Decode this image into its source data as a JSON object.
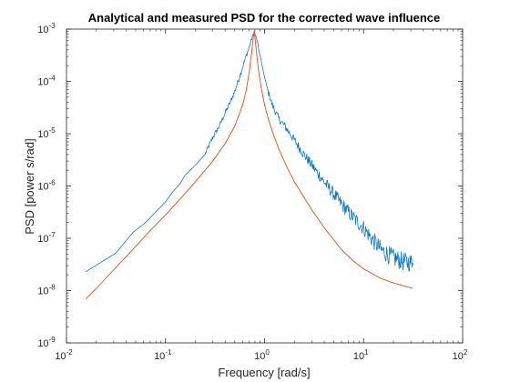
{
  "chart_data": {
    "type": "line",
    "title": "Analytical and measured PSD for the corrected wave influence",
    "xlabel": "Frequency [rad/s]",
    "ylabel": "PSD [power s/rad]",
    "xscale": "log",
    "yscale": "log",
    "xlim": [
      0.01,
      100
    ],
    "ylim": [
      1e-09,
      0.001
    ],
    "x_ticks": [
      {
        "value": 0.01,
        "base": "10",
        "exp": "-2"
      },
      {
        "value": 0.1,
        "base": "10",
        "exp": "-1"
      },
      {
        "value": 1,
        "base": "10",
        "exp": "0"
      },
      {
        "value": 10,
        "base": "10",
        "exp": "1"
      },
      {
        "value": 100,
        "base": "10",
        "exp": "2"
      }
    ],
    "y_ticks": [
      {
        "value": 1e-09,
        "base": "10",
        "exp": "-9"
      },
      {
        "value": 1e-08,
        "base": "10",
        "exp": "-8"
      },
      {
        "value": 1e-07,
        "base": "10",
        "exp": "-7"
      },
      {
        "value": 1e-06,
        "base": "10",
        "exp": "-6"
      },
      {
        "value": 1e-05,
        "base": "10",
        "exp": "-5"
      },
      {
        "value": 0.0001,
        "base": "10",
        "exp": "-4"
      },
      {
        "value": 0.001,
        "base": "10",
        "exp": "-3"
      }
    ],
    "grid": false,
    "legend": false,
    "series": [
      {
        "color": "#0072BD",
        "noisy": true,
        "x": [
          0.0157,
          0.0314,
          0.047,
          0.0628,
          0.08,
          0.1,
          0.12,
          0.14,
          0.157,
          0.2,
          0.25,
          0.3,
          0.35,
          0.4,
          0.45,
          0.5,
          0.55,
          0.6,
          0.65,
          0.7,
          0.74,
          0.77,
          0.79,
          0.81,
          0.84,
          0.88,
          0.92,
          1.0,
          1.1,
          1.2,
          1.4,
          1.6,
          2.0,
          2.5,
          3.0,
          4.0,
          5.0,
          6.0,
          8.0,
          10.0,
          12.0,
          15.0,
          20.0,
          25.0,
          31.4
        ],
        "y": [
          2.3e-08,
          5.2e-08,
          1.3e-07,
          2e-07,
          3.2e-07,
          5e-07,
          8e-07,
          1.1e-06,
          1.6e-06,
          2.5e-06,
          4e-06,
          8.5e-06,
          1.4e-05,
          2.5e-05,
          4e-05,
          6.5e-05,
          0.00011,
          0.00019,
          0.0003,
          0.00046,
          0.00065,
          0.00079,
          0.00085,
          0.00075,
          0.0006,
          0.00038,
          0.00025,
          0.00012,
          6e-05,
          3.5e-05,
          1.9e-05,
          1.4e-05,
          7.5e-06,
          4e-06,
          2.5e-06,
          1.2e-06,
          7e-07,
          4.5e-07,
          2.4e-07,
          1.6e-07,
          1e-07,
          6e-08,
          4.2e-08,
          3.6e-08,
          3.4e-08
        ]
      },
      {
        "color": "#D95319",
        "noisy": false,
        "x": [
          0.0157,
          0.02,
          0.03,
          0.05,
          0.07,
          0.1,
          0.15,
          0.2,
          0.3,
          0.4,
          0.5,
          0.6,
          0.65,
          0.7,
          0.74,
          0.77,
          0.785,
          0.8,
          0.83,
          0.87,
          0.92,
          1.0,
          1.1,
          1.2,
          1.4,
          1.7,
          2.0,
          3.0,
          4.0,
          6.0,
          8.0,
          10.0,
          15.0,
          20.0,
          31.4
        ],
        "y": [
          7e-09,
          1.1e-08,
          2.5e-08,
          7e-08,
          1.4e-07,
          2.8e-07,
          6.5e-07,
          1.2e-06,
          3e-06,
          6.5e-06,
          1.4e-05,
          3.5e-05,
          6.5e-05,
          0.00015,
          0.00035,
          0.0007,
          0.00092,
          0.0007,
          0.00035,
          0.00016,
          8e-05,
          3.6e-05,
          1.8e-05,
          1.1e-05,
          5e-06,
          2.2e-06,
          1.2e-06,
          3.5e-07,
          1.6e-07,
          6e-08,
          3.6e-08,
          2.6e-08,
          1.7e-08,
          1.4e-08,
          1.1e-08
        ]
      }
    ]
  }
}
